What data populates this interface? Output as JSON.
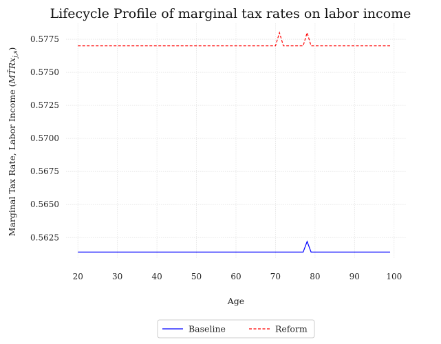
{
  "chart_data": {
    "type": "line",
    "title": "Lifecycle Profile of marginal tax rates on labor income",
    "xlabel": "Age",
    "ylabel": "Marginal Tax Rate, Labor Income (MTRx_j,s)",
    "ylabel_parts": {
      "prefix": "Marginal Tax Rate, Labor Income (",
      "symbol": "MT̄Rx",
      "subscript": "j,s",
      "suffix": ")"
    },
    "xlim": [
      17,
      103
    ],
    "ylim": [
      0.5609,
      0.5787
    ],
    "xticks": [
      20,
      30,
      40,
      50,
      60,
      70,
      80,
      90,
      100
    ],
    "yticks": [
      0.5625,
      0.565,
      0.5675,
      0.57,
      0.5725,
      0.575,
      0.5775
    ],
    "ytick_labels": [
      "0.5625",
      "0.5650",
      "0.5675",
      "0.5700",
      "0.5725",
      "0.5750",
      "0.5775"
    ],
    "grid": true,
    "legend_position": "bottom-center",
    "series": [
      {
        "name": "Baseline",
        "color": "#0000ff",
        "style": "solid",
        "x": [
          20,
          77,
          78,
          79,
          99
        ],
        "y": [
          0.5614,
          0.5614,
          0.5622,
          0.5614,
          0.5614
        ]
      },
      {
        "name": "Reform",
        "color": "#ff0000",
        "style": "dashed",
        "x": [
          20,
          70,
          71,
          72,
          77,
          78,
          79,
          99
        ],
        "y": [
          0.577,
          0.577,
          0.578,
          0.577,
          0.577,
          0.578,
          0.577,
          0.577
        ]
      }
    ]
  }
}
